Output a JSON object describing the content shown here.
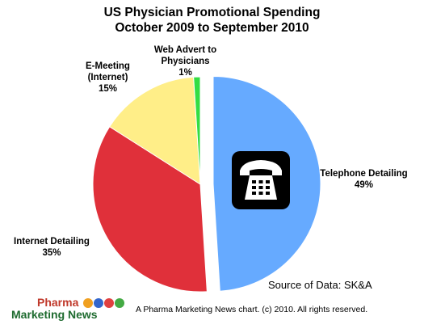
{
  "chart_data": {
    "type": "pie",
    "title": [
      "US Physician Promotional Spending",
      "October 2009 to September 2010"
    ],
    "slices": [
      {
        "label": [
          "Telephone Detailing"
        ],
        "percent_label": "49%",
        "value": 49,
        "color": "#66aaff",
        "exploded": true
      },
      {
        "label": [
          "Internet Detailing"
        ],
        "percent_label": "35%",
        "value": 35,
        "color": "#e0303a",
        "exploded": false
      },
      {
        "label": [
          "E-Meeting",
          "(Internet)"
        ],
        "percent_label": "15%",
        "value": 15,
        "color": "#ffee88",
        "exploded": false
      },
      {
        "label": [
          "Web Advert to",
          "Physicians"
        ],
        "percent_label": "1%",
        "value": 1,
        "color": "#33dd44",
        "exploded": false
      }
    ]
  },
  "source_text": "Source of Data: SK&A",
  "logo": {
    "line1": "Pharma",
    "line2": "Marketing News"
  },
  "footer_text": "A Pharma Marketing News chart. (c) 2010. All rights reserved.",
  "icons": {
    "telephone": "telephone-icon"
  }
}
